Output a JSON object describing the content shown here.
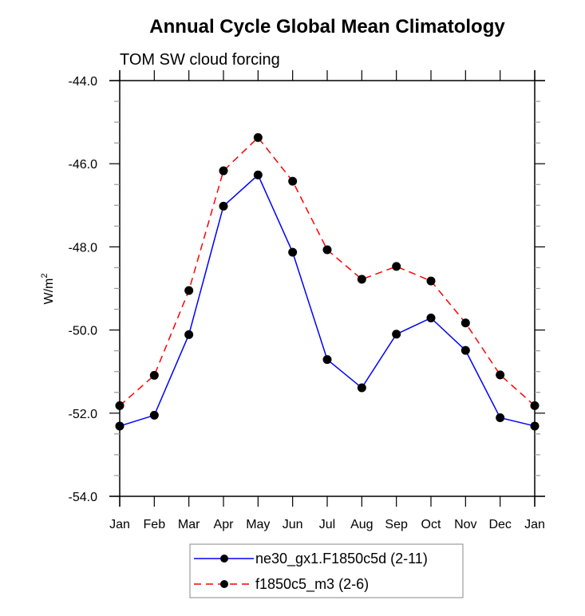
{
  "chart_data": {
    "type": "line",
    "title": "Annual Cycle Global Mean Climatology",
    "subtitle": "TOM SW cloud forcing",
    "xlabel": "",
    "ylabel": "W/m",
    "ylabel_superscript": "2",
    "categories": [
      "Jan",
      "Feb",
      "Mar",
      "Apr",
      "May",
      "Jun",
      "Jul",
      "Aug",
      "Sep",
      "Oct",
      "Nov",
      "Dec",
      "Jan"
    ],
    "ylim": [
      -54.0,
      -44.0
    ],
    "y_major_ticks": [
      -54.0,
      -52.0,
      -50.0,
      -48.0,
      -46.0,
      -44.0
    ],
    "y_tick_labels": [
      "-54.0",
      "-52.0",
      "-50.0",
      "-48.0",
      "-46.0",
      "-44.0"
    ],
    "y_minor_step": 0.5,
    "grid": false,
    "legend_position": "bottom-center",
    "series": [
      {
        "name": "ne30_gx1.F1850c5d (2-11)",
        "color": "#0000ff",
        "dash": "solid",
        "marker": "filled-circle",
        "values": [
          -52.31,
          -52.05,
          -50.11,
          -47.02,
          -46.27,
          -48.13,
          -50.71,
          -51.39,
          -50.1,
          -49.71,
          -50.49,
          -52.11,
          -52.31
        ]
      },
      {
        "name": "f1850c5_m3 (2-6)",
        "color": "#ff0000",
        "dash": "dashed",
        "marker": "filled-circle",
        "values": [
          -51.82,
          -51.09,
          -49.05,
          -46.17,
          -45.37,
          -46.42,
          -48.07,
          -48.78,
          -48.47,
          -48.82,
          -49.83,
          -51.08,
          -51.82
        ]
      }
    ]
  }
}
